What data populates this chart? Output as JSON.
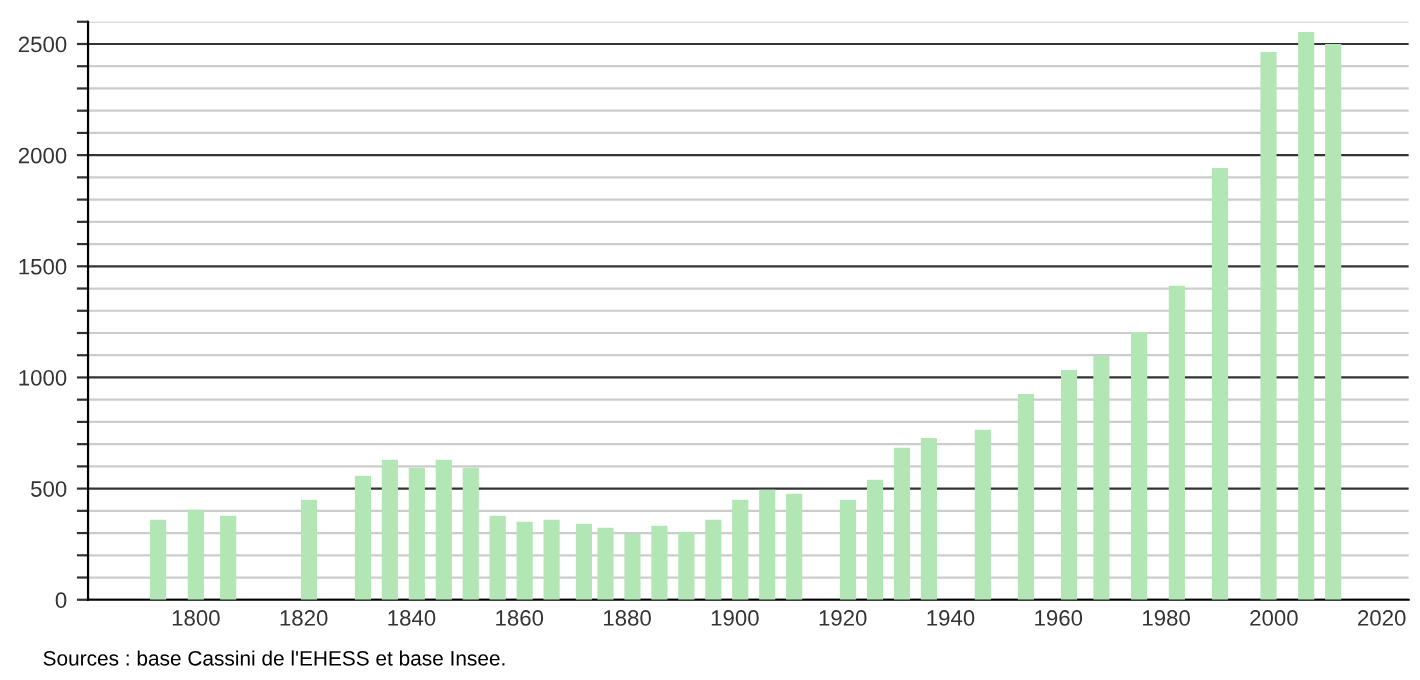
{
  "chart_data": {
    "type": "bar",
    "x": [
      1793,
      1800,
      1806,
      1821,
      1831,
      1836,
      1841,
      1846,
      1851,
      1856,
      1861,
      1866,
      1872,
      1876,
      1881,
      1886,
      1891,
      1896,
      1901,
      1906,
      1911,
      1921,
      1926,
      1931,
      1936,
      1946,
      1954,
      1962,
      1968,
      1975,
      1982,
      1990,
      1999,
      2006,
      2011
    ],
    "values": [
      360,
      405,
      378,
      450,
      558,
      630,
      594,
      630,
      594,
      378,
      351,
      360,
      342,
      324,
      297,
      333,
      306,
      360,
      450,
      495,
      477,
      450,
      540,
      684,
      728,
      765,
      926,
      1034,
      1097,
      1205,
      1412,
      1942,
      2464,
      2554,
      2500
    ],
    "color": "#b3e6b5",
    "xlim": [
      1780,
      2025
    ],
    "xticks": [
      1800,
      1820,
      1840,
      1860,
      1880,
      1900,
      1920,
      1940,
      1960,
      1980,
      2000,
      2020
    ],
    "ylim": [
      0,
      2600
    ],
    "yticks": [
      0,
      {
        "value": 100,
        "label": null
      },
      {
        "value": 200,
        "label": null
      },
      {
        "value": 300,
        "label": null
      },
      {
        "value": 400,
        "label": null
      },
      500,
      {
        "value": 600,
        "label": null
      },
      {
        "value": 700,
        "label": null
      },
      {
        "value": 800,
        "label": null
      },
      {
        "value": 900,
        "label": null
      },
      1000,
      {
        "value": 1100,
        "label": null
      },
      {
        "value": 1200,
        "label": null
      },
      {
        "value": 1300,
        "label": null
      },
      {
        "value": 1400,
        "label": null
      },
      1500,
      {
        "value": 1600,
        "label": null
      },
      {
        "value": 1700,
        "label": null
      },
      {
        "value": 1800,
        "label": null
      },
      {
        "value": 1900,
        "label": null
      },
      2000,
      {
        "value": 2100,
        "label": null
      },
      {
        "value": 2200,
        "label": null
      },
      {
        "value": 2300,
        "label": null
      },
      {
        "value": 2400,
        "label": null
      },
      2500,
      {
        "value": 2600,
        "label": null
      }
    ],
    "grid": "y",
    "annotations": [
      "Sources : base Cassini de l'EHESS et base Insee."
    ]
  }
}
